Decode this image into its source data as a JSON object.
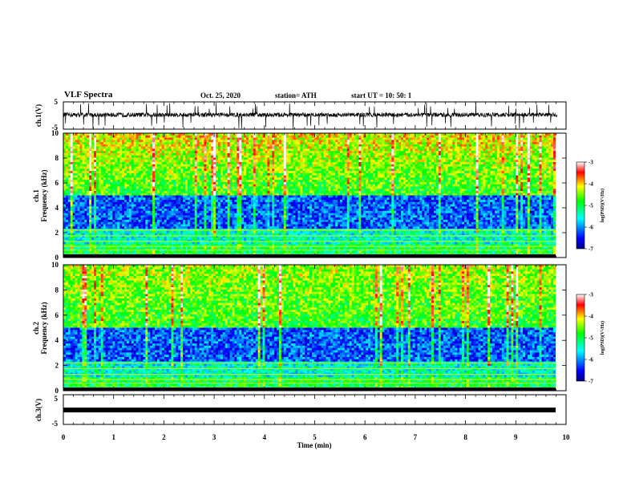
{
  "header": {
    "title": "VLF Spectra",
    "date": "Oct. 25, 2020",
    "station": "station= ATH",
    "start": "start  UT =   10: 50: 1"
  },
  "chart_data": [
    {
      "type": "line",
      "panel": "ch1-waveform",
      "ylabel": "ch.1(V)",
      "ylim": [
        -5,
        5
      ],
      "yticks": [
        "5",
        "-5"
      ],
      "xlim": [
        0,
        10
      ],
      "note": "noisy waveform centered near 0 V with spikes to about +/-5 V"
    },
    {
      "type": "heatmap",
      "panel": "ch1-spectrogram",
      "ylabel": [
        "ch.1",
        "Frequency  (kHz)"
      ],
      "ylim": [
        0,
        10
      ],
      "yticks": [
        "0",
        "2",
        "4",
        "6",
        "8",
        "10"
      ],
      "xlim": [
        0,
        10
      ],
      "colorbar": {
        "label": "log(PSD)(V²/Hz)",
        "range": [
          -7,
          -3
        ],
        "ticks": [
          "-3",
          "-4",
          "-5",
          "-6",
          "-7"
        ]
      }
    },
    {
      "type": "heatmap",
      "panel": "ch2-spectrogram",
      "ylabel": [
        "ch.2",
        "Frequency  (kHz)"
      ],
      "ylim": [
        0,
        10
      ],
      "yticks": [
        "0",
        "2",
        "4",
        "6",
        "8",
        "10"
      ],
      "xlim": [
        0,
        10
      ],
      "colorbar": {
        "label": "log(PSD)(V²/Hz)",
        "range": [
          -7,
          -3
        ],
        "ticks": [
          "-3",
          "-4",
          "-5",
          "-6",
          "-7"
        ]
      }
    },
    {
      "type": "line",
      "panel": "ch3-waveform",
      "ylabel": "ch.3(V)",
      "ylim": [
        -5,
        5
      ],
      "yticks": [
        "5",
        "-5"
      ],
      "xlim": [
        0,
        10
      ],
      "note": "flat trace near 0 V",
      "xlabel": "Time  (min)",
      "xticks": [
        "0",
        "1",
        "2",
        "3",
        "4",
        "5",
        "6",
        "7",
        "8",
        "9",
        "10"
      ]
    }
  ]
}
